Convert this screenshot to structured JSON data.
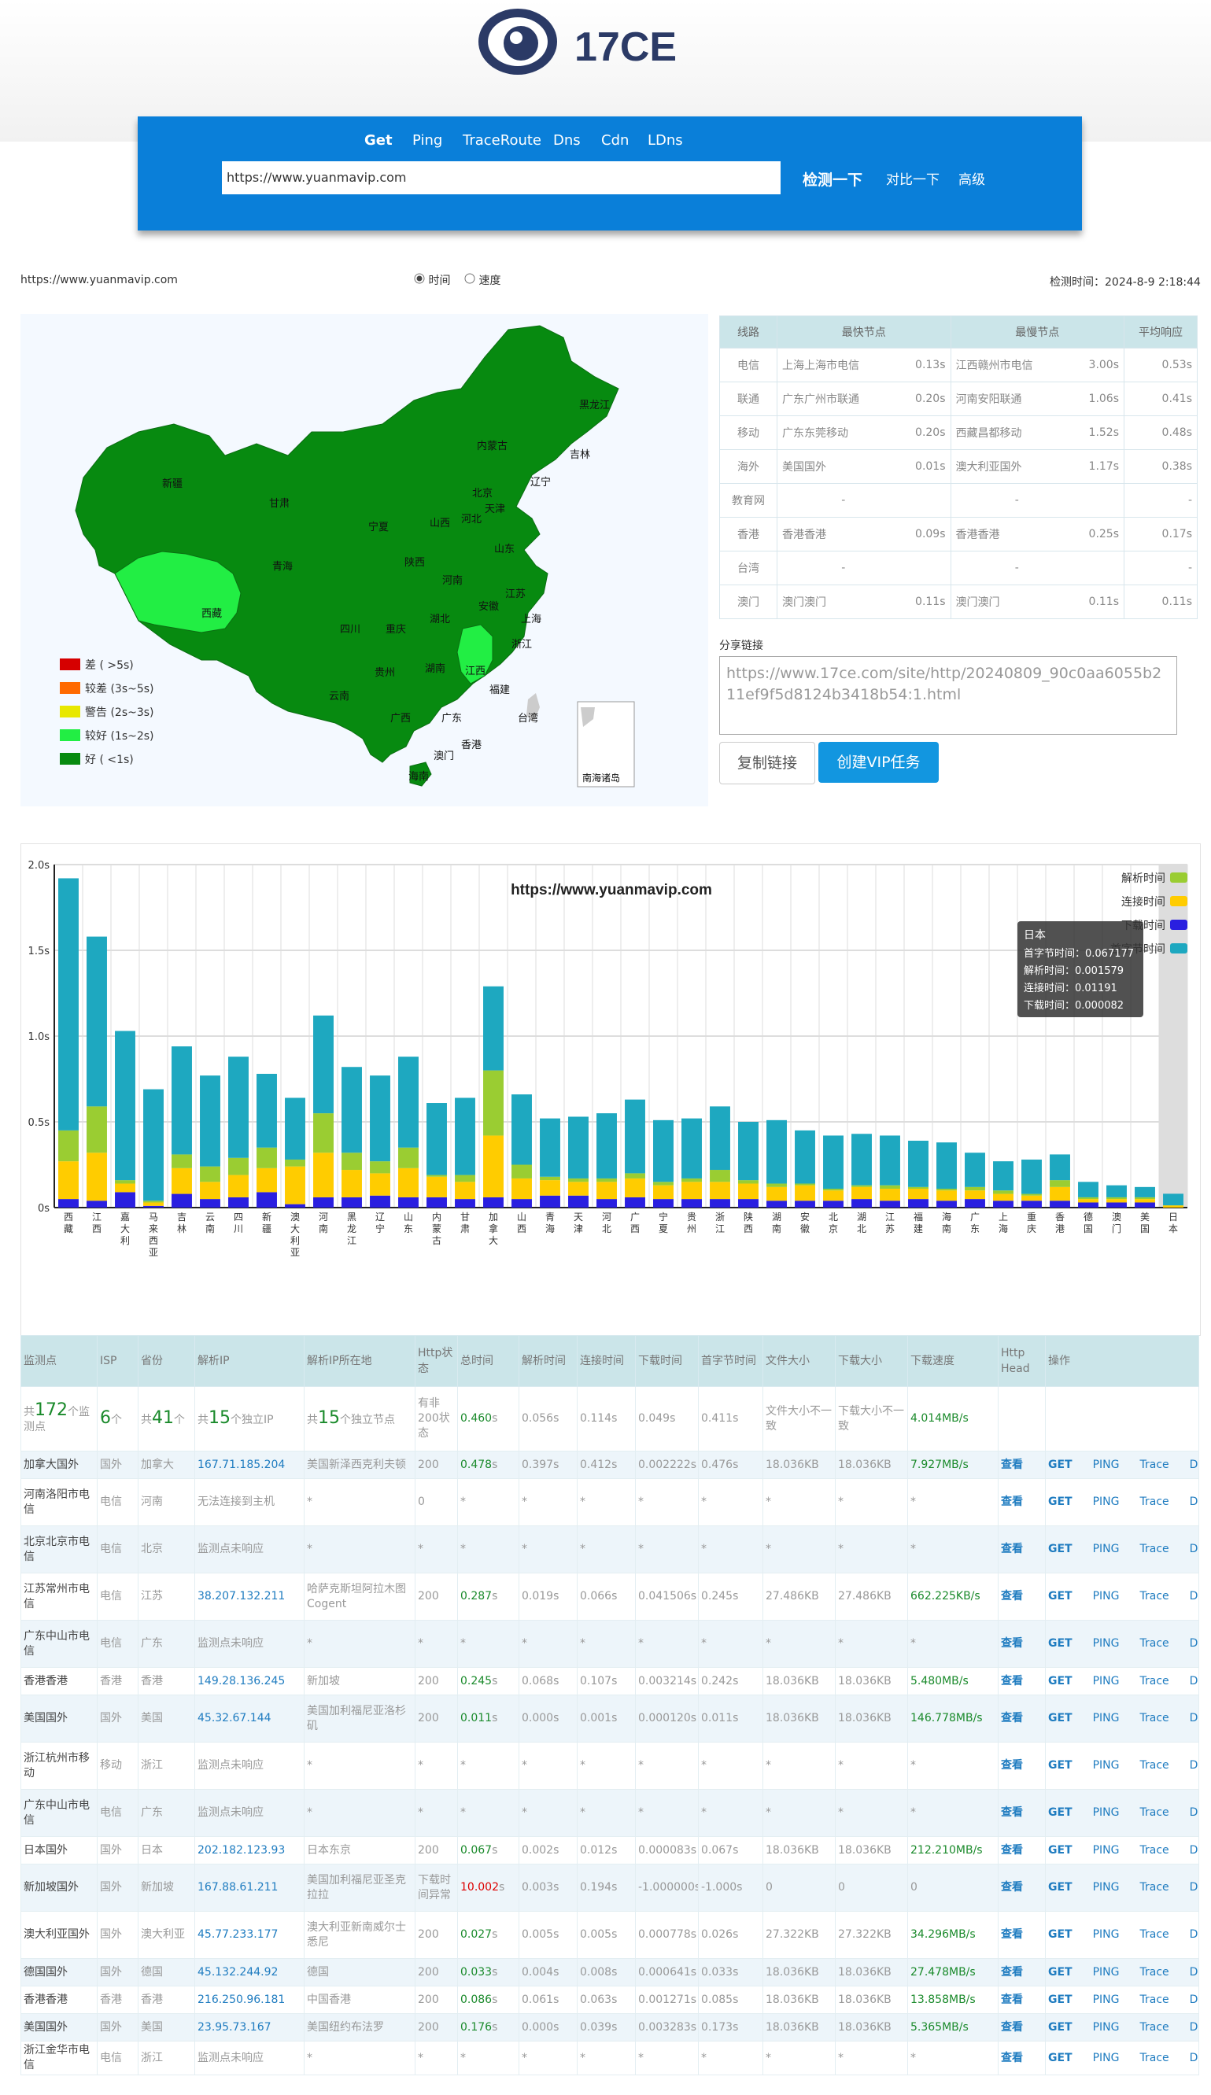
{
  "header": {
    "logo_text": "17CE",
    "tabs": [
      "Get",
      "Ping",
      "TraceRoute",
      "Dns",
      "Cdn",
      "LDns"
    ],
    "active_tab": "Get",
    "url_value": "https://www.yuanmavip.com",
    "detect_button": "检测一下",
    "compare_link": "对比一下",
    "advanced_link": "高级"
  },
  "info": {
    "url": "https://www.yuanmavip.com",
    "radio_time": "时间",
    "radio_speed": "速度",
    "detect_time": "检测时间：2024-8-9 2:18:44"
  },
  "map": {
    "legend": [
      {
        "label": "差 ( >5s)",
        "color": "#d60000"
      },
      {
        "label": "较差 (3s~5s)",
        "color": "#ff6a00"
      },
      {
        "label": "警告 (2s~3s)",
        "color": "#e8e800"
      },
      {
        "label": "较好 (1s~2s)",
        "color": "#22ee44"
      },
      {
        "label": "好 ( <1s)",
        "color": "#078a10"
      }
    ],
    "provinces": [
      "新疆",
      "西藏",
      "青海",
      "甘肃",
      "四川",
      "云南",
      "内蒙古",
      "黑龙江",
      "吉林",
      "辽宁",
      "北京",
      "天津",
      "河北",
      "山西",
      "陕西",
      "宁夏",
      "山东",
      "河南",
      "江苏",
      "安徽",
      "湖北",
      "上海",
      "浙江",
      "重庆",
      "贵州",
      "湖南",
      "江西",
      "福建",
      "广西",
      "广东",
      "台湾",
      "海南",
      "香港",
      "澳门"
    ],
    "inset": "南海诸岛"
  },
  "summary": {
    "headers": [
      "线路",
      "最快节点",
      "",
      "最慢节点",
      "",
      "平均响应"
    ],
    "rows": [
      {
        "line": "电信",
        "fast": "上海上海市电信",
        "fast_t": "0.13s",
        "slow": "江西赣州市电信",
        "slow_t": "3.00s",
        "avg": "0.53s"
      },
      {
        "line": "联通",
        "fast": "广东广州市联通",
        "fast_t": "0.20s",
        "slow": "河南安阳联通",
        "slow_t": "1.06s",
        "avg": "0.41s"
      },
      {
        "line": "移动",
        "fast": "广东东莞移动",
        "fast_t": "0.20s",
        "slow": "西藏昌都移动",
        "slow_t": "1.52s",
        "avg": "0.48s"
      },
      {
        "line": "海外",
        "fast": "美国国外",
        "fast_t": "0.01s",
        "slow": "澳大利亚国外",
        "slow_t": "1.17s",
        "avg": "0.38s"
      },
      {
        "line": "教育网",
        "fast": "-",
        "fast_t": "",
        "slow": "-",
        "slow_t": "",
        "avg": "-"
      },
      {
        "line": "香港",
        "fast": "香港香港",
        "fast_t": "0.09s",
        "slow": "香港香港",
        "slow_t": "0.25s",
        "avg": "0.17s"
      },
      {
        "line": "台湾",
        "fast": "-",
        "fast_t": "",
        "slow": "-",
        "slow_t": "",
        "avg": "-"
      },
      {
        "line": "澳门",
        "fast": "澳门澳门",
        "fast_t": "0.11s",
        "slow": "澳门澳门",
        "slow_t": "0.11s",
        "avg": "0.11s"
      }
    ]
  },
  "share": {
    "label": "分享链接",
    "link": "https://www.17ce.com/site/http/20240809_90c0aa6055b211ef9f5d8124b3418b54:1.html",
    "copy_button": "复制链接",
    "vip_button": "创建VIP任务"
  },
  "chart_data": {
    "type": "bar",
    "title": "https://www.yuanmavip.com",
    "ylim": [
      0,
      2.0
    ],
    "yticks": [
      "0s",
      "0.5s",
      "1.0s",
      "1.5s",
      "2.0s"
    ],
    "categories": [
      "西藏",
      "江西",
      "嘉大利",
      "马来西亚",
      "吉林",
      "云南",
      "四川",
      "新疆",
      "澳大利亚",
      "河南",
      "黑龙江",
      "辽宁",
      "山东",
      "内蒙古",
      "甘肃",
      "加拿大",
      "山西",
      "青海",
      "天津",
      "河北",
      "广西",
      "宁夏",
      "贵州",
      "浙江",
      "陕西",
      "湖南",
      "安徽",
      "北京",
      "湖北",
      "江苏",
      "福建",
      "海南",
      "广东",
      "上海",
      "重庆",
      "香港",
      "德国",
      "澳门",
      "美国",
      "日本"
    ],
    "series": [
      {
        "name": "解析时间",
        "color": "#9acd32",
        "values": [
          0.18,
          0.27,
          0.02,
          0.01,
          0.08,
          0.09,
          0.1,
          0.12,
          0.04,
          0.23,
          0.1,
          0.07,
          0.12,
          0.01,
          0.04,
          0.38,
          0.08,
          0.02,
          0.02,
          0.02,
          0.03,
          0.02,
          0.02,
          0.07,
          0.02,
          0.02,
          0.01,
          0.01,
          0.01,
          0.02,
          0.01,
          0.01,
          0.02,
          0.02,
          0.01,
          0.04,
          0.01,
          0.01,
          0.01,
          0.0016
        ]
      },
      {
        "name": "连接时间",
        "color": "#ffcc00",
        "values": [
          0.22,
          0.28,
          0.05,
          0.02,
          0.15,
          0.1,
          0.13,
          0.14,
          0.22,
          0.26,
          0.16,
          0.13,
          0.17,
          0.12,
          0.1,
          0.36,
          0.12,
          0.09,
          0.08,
          0.1,
          0.11,
          0.08,
          0.1,
          0.1,
          0.09,
          0.08,
          0.09,
          0.06,
          0.07,
          0.07,
          0.06,
          0.06,
          0.05,
          0.04,
          0.03,
          0.08,
          0.02,
          0.02,
          0.02,
          0.0119
        ]
      },
      {
        "name": "下载时间",
        "color": "#2a1fe0",
        "values": [
          0.05,
          0.04,
          0.09,
          0.01,
          0.08,
          0.05,
          0.06,
          0.09,
          0.02,
          0.06,
          0.06,
          0.07,
          0.06,
          0.06,
          0.05,
          0.06,
          0.05,
          0.07,
          0.07,
          0.05,
          0.06,
          0.05,
          0.05,
          0.05,
          0.05,
          0.04,
          0.04,
          0.04,
          0.05,
          0.04,
          0.05,
          0.04,
          0.05,
          0.04,
          0.04,
          0.04,
          0.03,
          0.03,
          0.03,
          0.0001
        ]
      },
      {
        "name": "首字节时间",
        "color": "#1ea8c0",
        "values": [
          1.47,
          0.99,
          0.87,
          0.65,
          0.63,
          0.53,
          0.59,
          0.43,
          0.36,
          0.57,
          0.5,
          0.5,
          0.53,
          0.42,
          0.45,
          0.49,
          0.41,
          0.34,
          0.36,
          0.38,
          0.43,
          0.36,
          0.35,
          0.37,
          0.34,
          0.37,
          0.31,
          0.31,
          0.3,
          0.29,
          0.27,
          0.27,
          0.2,
          0.17,
          0.2,
          0.15,
          0.09,
          0.07,
          0.06,
          0.0672
        ]
      }
    ],
    "tooltip": {
      "title": "日本",
      "lines": [
        "首字节时间：0.067177",
        "解析时间：0.001579",
        "连接时间：0.01191",
        "下载时间：0.000082"
      ]
    }
  },
  "detail": {
    "headers": [
      "监测点",
      "ISP",
      "省份",
      "解析IP",
      "解析IP所在地",
      "Http状态",
      "总时间",
      "解析时间",
      "连接时间",
      "下载时间",
      "首字节时间",
      "文件大小",
      "下载大小",
      "下载速度",
      "Http Head",
      "操作"
    ],
    "summary_row": {
      "points_pre": "共",
      "points": "172",
      "points_post": "个监测点",
      "isp": "6",
      "isp_post": "个",
      "prov_pre": "共",
      "prov": "41",
      "prov_post": "个",
      "ip_pre": "共",
      "ip": "15",
      "ip_post": "个独立IP",
      "loc_pre": "共",
      "loc": "15",
      "loc_post": "个独立节点",
      "status": "有非200状态",
      "total": "0.460",
      "total_unit": "s",
      "dns": "0.056s",
      "conn": "0.114s",
      "down": "0.049s",
      "first": "0.411s",
      "fsize": "文件大小不一致",
      "dsize": "下载大小不一致",
      "speed": "4.014MB/s"
    },
    "ops": [
      "查看",
      "GET",
      "PING",
      "Trace",
      "Dig"
    ],
    "rows": [
      {
        "node": "加拿大国外",
        "isp": "国外",
        "prov": "加拿大",
        "ip": "167.71.185.204",
        "loc": "美国新泽西克利夫顿",
        "status": "200",
        "total": "0.478",
        "dns": "0.397s",
        "conn": "0.412s",
        "down": "0.002222s",
        "first": "0.476s",
        "fsize": "18.036KB",
        "dsize": "18.036KB",
        "speed": "7.927MB/s"
      },
      {
        "node": "河南洛阳市电信",
        "isp": "电信",
        "prov": "河南",
        "ip": "无法连接到主机",
        "loc": "*",
        "status": "0",
        "total": "*",
        "dns": "*",
        "conn": "*",
        "down": "*",
        "first": "*",
        "fsize": "*",
        "dsize": "*",
        "speed": "*"
      },
      {
        "node": "北京北京市电信",
        "isp": "电信",
        "prov": "北京",
        "ip": "监测点未响应",
        "loc": "*",
        "status": "*",
        "total": "*",
        "dns": "*",
        "conn": "*",
        "down": "*",
        "first": "*",
        "fsize": "*",
        "dsize": "*",
        "speed": "*"
      },
      {
        "node": "江苏常州市电信",
        "isp": "电信",
        "prov": "江苏",
        "ip": "38.207.132.211",
        "loc": "哈萨克斯坦阿拉木图 Cogent",
        "status": "200",
        "total": "0.287",
        "dns": "0.019s",
        "conn": "0.066s",
        "down": "0.041506s",
        "first": "0.245s",
        "fsize": "27.486KB",
        "dsize": "27.486KB",
        "speed": "662.225KB/s"
      },
      {
        "node": "广东中山市电信",
        "isp": "电信",
        "prov": "广东",
        "ip": "监测点未响应",
        "loc": "*",
        "status": "*",
        "total": "*",
        "dns": "*",
        "conn": "*",
        "down": "*",
        "first": "*",
        "fsize": "*",
        "dsize": "*",
        "speed": "*"
      },
      {
        "node": "香港香港",
        "isp": "香港",
        "prov": "香港",
        "ip": "149.28.136.245",
        "loc": "新加坡",
        "status": "200",
        "total": "0.245",
        "dns": "0.068s",
        "conn": "0.107s",
        "down": "0.003214s",
        "first": "0.242s",
        "fsize": "18.036KB",
        "dsize": "18.036KB",
        "speed": "5.480MB/s"
      },
      {
        "node": "美国国外",
        "isp": "国外",
        "prov": "美国",
        "ip": "45.32.67.144",
        "loc": "美国加利福尼亚洛杉矶",
        "status": "200",
        "total": "0.011",
        "dns": "0.000s",
        "conn": "0.001s",
        "down": "0.000120s",
        "first": "0.011s",
        "fsize": "18.036KB",
        "dsize": "18.036KB",
        "speed": "146.778MB/s"
      },
      {
        "node": "浙江杭州市移动",
        "isp": "移动",
        "prov": "浙江",
        "ip": "监测点未响应",
        "loc": "*",
        "status": "*",
        "total": "*",
        "dns": "*",
        "conn": "*",
        "down": "*",
        "first": "*",
        "fsize": "*",
        "dsize": "*",
        "speed": "*"
      },
      {
        "node": "广东中山市电信",
        "isp": "电信",
        "prov": "广东",
        "ip": "监测点未响应",
        "loc": "*",
        "status": "*",
        "total": "*",
        "dns": "*",
        "conn": "*",
        "down": "*",
        "first": "*",
        "fsize": "*",
        "dsize": "*",
        "speed": "*"
      },
      {
        "node": "日本国外",
        "isp": "国外",
        "prov": "日本",
        "ip": "202.182.123.93",
        "loc": "日本东京",
        "status": "200",
        "total": "0.067",
        "dns": "0.002s",
        "conn": "0.012s",
        "down": "0.000083s",
        "first": "0.067s",
        "fsize": "18.036KB",
        "dsize": "18.036KB",
        "speed": "212.210MB/s"
      },
      {
        "node": "新加坡国外",
        "isp": "国外",
        "prov": "新加坡",
        "ip": "167.88.61.211",
        "loc": "美国加利福尼亚圣克拉拉",
        "status": "下载时间异常",
        "total": "10.002",
        "dns": "0.003s",
        "conn": "0.194s",
        "down": "-1.000000s",
        "first": "-1.000s",
        "fsize": "0",
        "dsize": "0",
        "speed": "0"
      },
      {
        "node": "澳大利亚国外",
        "isp": "国外",
        "prov": "澳大利亚",
        "ip": "45.77.233.177",
        "loc": "澳大利亚新南威尔士悉尼",
        "status": "200",
        "total": "0.027",
        "dns": "0.005s",
        "conn": "0.005s",
        "down": "0.000778s",
        "first": "0.026s",
        "fsize": "27.322KB",
        "dsize": "27.322KB",
        "speed": "34.296MB/s"
      },
      {
        "node": "德国国外",
        "isp": "国外",
        "prov": "德国",
        "ip": "45.132.244.92",
        "loc": "德国",
        "status": "200",
        "total": "0.033",
        "dns": "0.004s",
        "conn": "0.008s",
        "down": "0.000641s",
        "first": "0.033s",
        "fsize": "18.036KB",
        "dsize": "18.036KB",
        "speed": "27.478MB/s"
      },
      {
        "node": "香港香港",
        "isp": "香港",
        "prov": "香港",
        "ip": "216.250.96.181",
        "loc": "中国香港",
        "status": "200",
        "total": "0.086",
        "dns": "0.061s",
        "conn": "0.063s",
        "down": "0.001271s",
        "first": "0.085s",
        "fsize": "18.036KB",
        "dsize": "18.036KB",
        "speed": "13.858MB/s"
      },
      {
        "node": "美国国外",
        "isp": "国外",
        "prov": "美国",
        "ip": "23.95.73.167",
        "loc": "美国纽约布法罗",
        "status": "200",
        "total": "0.176",
        "dns": "0.000s",
        "conn": "0.039s",
        "down": "0.003283s",
        "first": "0.173s",
        "fsize": "18.036KB",
        "dsize": "18.036KB",
        "speed": "5.365MB/s"
      },
      {
        "node": "浙江金华市电信",
        "isp": "电信",
        "prov": "浙江",
        "ip": "监测点未响应",
        "loc": "*",
        "status": "*",
        "total": "*",
        "dns": "*",
        "conn": "*",
        "down": "*",
        "first": "*",
        "fsize": "*",
        "dsize": "*",
        "speed": "*"
      }
    ]
  }
}
